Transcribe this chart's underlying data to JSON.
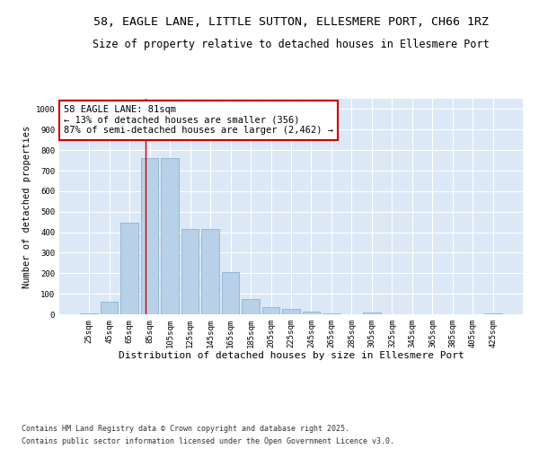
{
  "title_line1": "58, EAGLE LANE, LITTLE SUTTON, ELLESMERE PORT, CH66 1RZ",
  "title_line2": "Size of property relative to detached houses in Ellesmere Port",
  "xlabel": "Distribution of detached houses by size in Ellesmere Port",
  "ylabel": "Number of detached properties",
  "categories": [
    "25sqm",
    "45sqm",
    "65sqm",
    "85sqm",
    "105sqm",
    "125sqm",
    "145sqm",
    "165sqm",
    "185sqm",
    "205sqm",
    "225sqm",
    "245sqm",
    "265sqm",
    "285sqm",
    "305sqm",
    "325sqm",
    "345sqm",
    "365sqm",
    "385sqm",
    "405sqm",
    "425sqm"
  ],
  "values": [
    5,
    62,
    447,
    762,
    762,
    415,
    415,
    205,
    75,
    37,
    25,
    14,
    5,
    0,
    10,
    0,
    0,
    0,
    0,
    0,
    5
  ],
  "bar_color": "#b8d0e8",
  "bar_edge_color": "#7aacd0",
  "vline_color": "#cc0000",
  "annotation_text": "58 EAGLE LANE: 81sqm\n← 13% of detached houses are smaller (356)\n87% of semi-detached houses are larger (2,462) →",
  "annotation_box_color": "#ffffff",
  "annotation_edge_color": "#cc0000",
  "ylim": [
    0,
    1050
  ],
  "yticks": [
    0,
    100,
    200,
    300,
    400,
    500,
    600,
    700,
    800,
    900,
    1000
  ],
  "background_color": "#dce8f5",
  "grid_color": "#ffffff",
  "fig_background": "#ffffff",
  "footer_line1": "Contains HM Land Registry data © Crown copyright and database right 2025.",
  "footer_line2": "Contains public sector information licensed under the Open Government Licence v3.0.",
  "title_fontsize": 9.5,
  "subtitle_fontsize": 8.5,
  "tick_fontsize": 6.5,
  "xlabel_fontsize": 8,
  "ylabel_fontsize": 7.5,
  "annotation_fontsize": 7.5,
  "footer_fontsize": 6
}
